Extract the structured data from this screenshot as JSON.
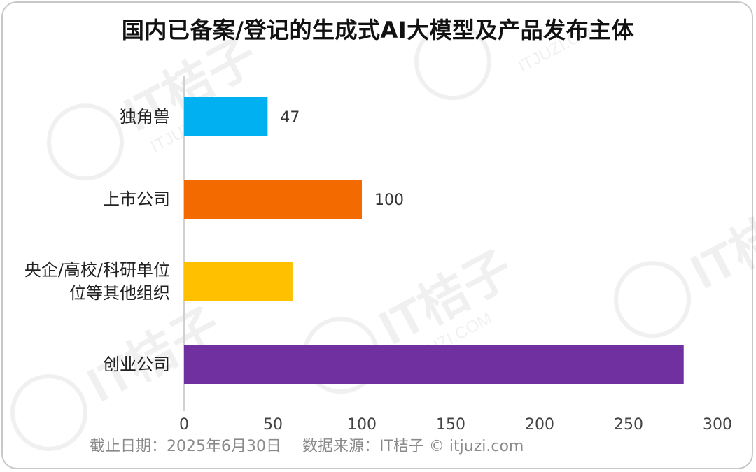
{
  "chart_data": {
    "type": "bar",
    "orientation": "horizontal",
    "title": "国内已备案/登记的生成式AI大模型及产品发布主体",
    "categories": [
      "独角兽",
      "上市公司",
      "央企/高校/科研单位等其他组织",
      "创业公司"
    ],
    "category_lines": [
      [
        "独角兽"
      ],
      [
        "上市公司"
      ],
      [
        "央企/高校/科研单位",
        "位等其他组织"
      ],
      [
        "创业公司"
      ]
    ],
    "values": [
      47,
      100,
      61,
      281
    ],
    "value_labels": [
      "47",
      "100",
      "",
      ""
    ],
    "colors": [
      "#00b0f0",
      "#f26a00",
      "#ffc000",
      "#7030a0"
    ],
    "xlim": [
      0,
      300
    ],
    "xticks": [
      "0",
      "50",
      "100",
      "150",
      "200",
      "250",
      "300"
    ],
    "grid": false,
    "legend": "none"
  },
  "footer": {
    "date": "截止日期：2025年6月30日",
    "source": "数据来源：IT桔子 © itjuzi.com"
  },
  "watermark": {
    "text": "IT桔子",
    "subtext": "ITJUZI.COM"
  }
}
